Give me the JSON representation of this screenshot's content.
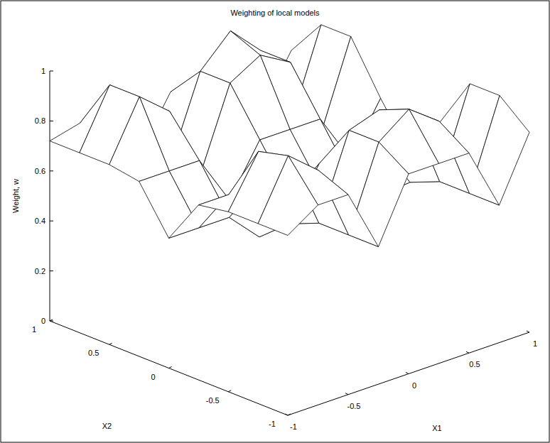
{
  "chart_data": {
    "type": "surface",
    "title": "Weighting of local models",
    "x_label": "X1",
    "y_label": "X2",
    "z_label": "Weight, w",
    "x": [
      -1,
      -0.75,
      -0.5,
      -0.25,
      0,
      0.25,
      0.5,
      0.75,
      1
    ],
    "y": [
      -1,
      -0.75,
      -0.5,
      -0.25,
      0,
      0.25,
      0.5,
      0.75,
      1
    ],
    "z": [
      [
        0.72,
        0.8,
        0.8,
        0.55,
        0.8,
        0.8,
        0.8,
        0.55,
        0.8
      ],
      [
        0.72,
        0.95,
        0.85,
        0.55,
        0.88,
        0.97,
        0.88,
        0.55,
        0.9
      ],
      [
        0.72,
        0.92,
        0.85,
        0.55,
        0.88,
        0.92,
        0.88,
        0.55,
        0.9
      ],
      [
        0.7,
        0.7,
        0.7,
        0.5,
        0.7,
        0.7,
        0.7,
        0.5,
        0.7
      ],
      [
        0.52,
        0.52,
        0.52,
        0.4,
        0.52,
        0.52,
        0.52,
        0.4,
        0.52
      ],
      [
        0.7,
        0.7,
        0.7,
        0.5,
        0.7,
        0.7,
        0.7,
        0.5,
        0.7
      ],
      [
        0.72,
        0.95,
        0.85,
        0.55,
        0.88,
        0.95,
        0.88,
        0.55,
        0.9
      ],
      [
        0.72,
        0.95,
        0.85,
        0.55,
        0.88,
        1.0,
        0.88,
        0.55,
        0.9
      ],
      [
        0.72,
        0.75,
        0.75,
        0.55,
        0.75,
        0.75,
        0.75,
        0.55,
        0.75
      ]
    ],
    "xlim": [
      -1,
      1
    ],
    "ylim": [
      -1,
      1
    ],
    "zlim": [
      0,
      1
    ],
    "xticks": [
      -1,
      -0.5,
      0,
      0.5,
      1
    ],
    "yticks": [
      -1,
      -0.5,
      0,
      0.5,
      1
    ],
    "zticks": [
      0,
      0.2,
      0.4,
      0.6,
      0.8,
      1
    ]
  }
}
